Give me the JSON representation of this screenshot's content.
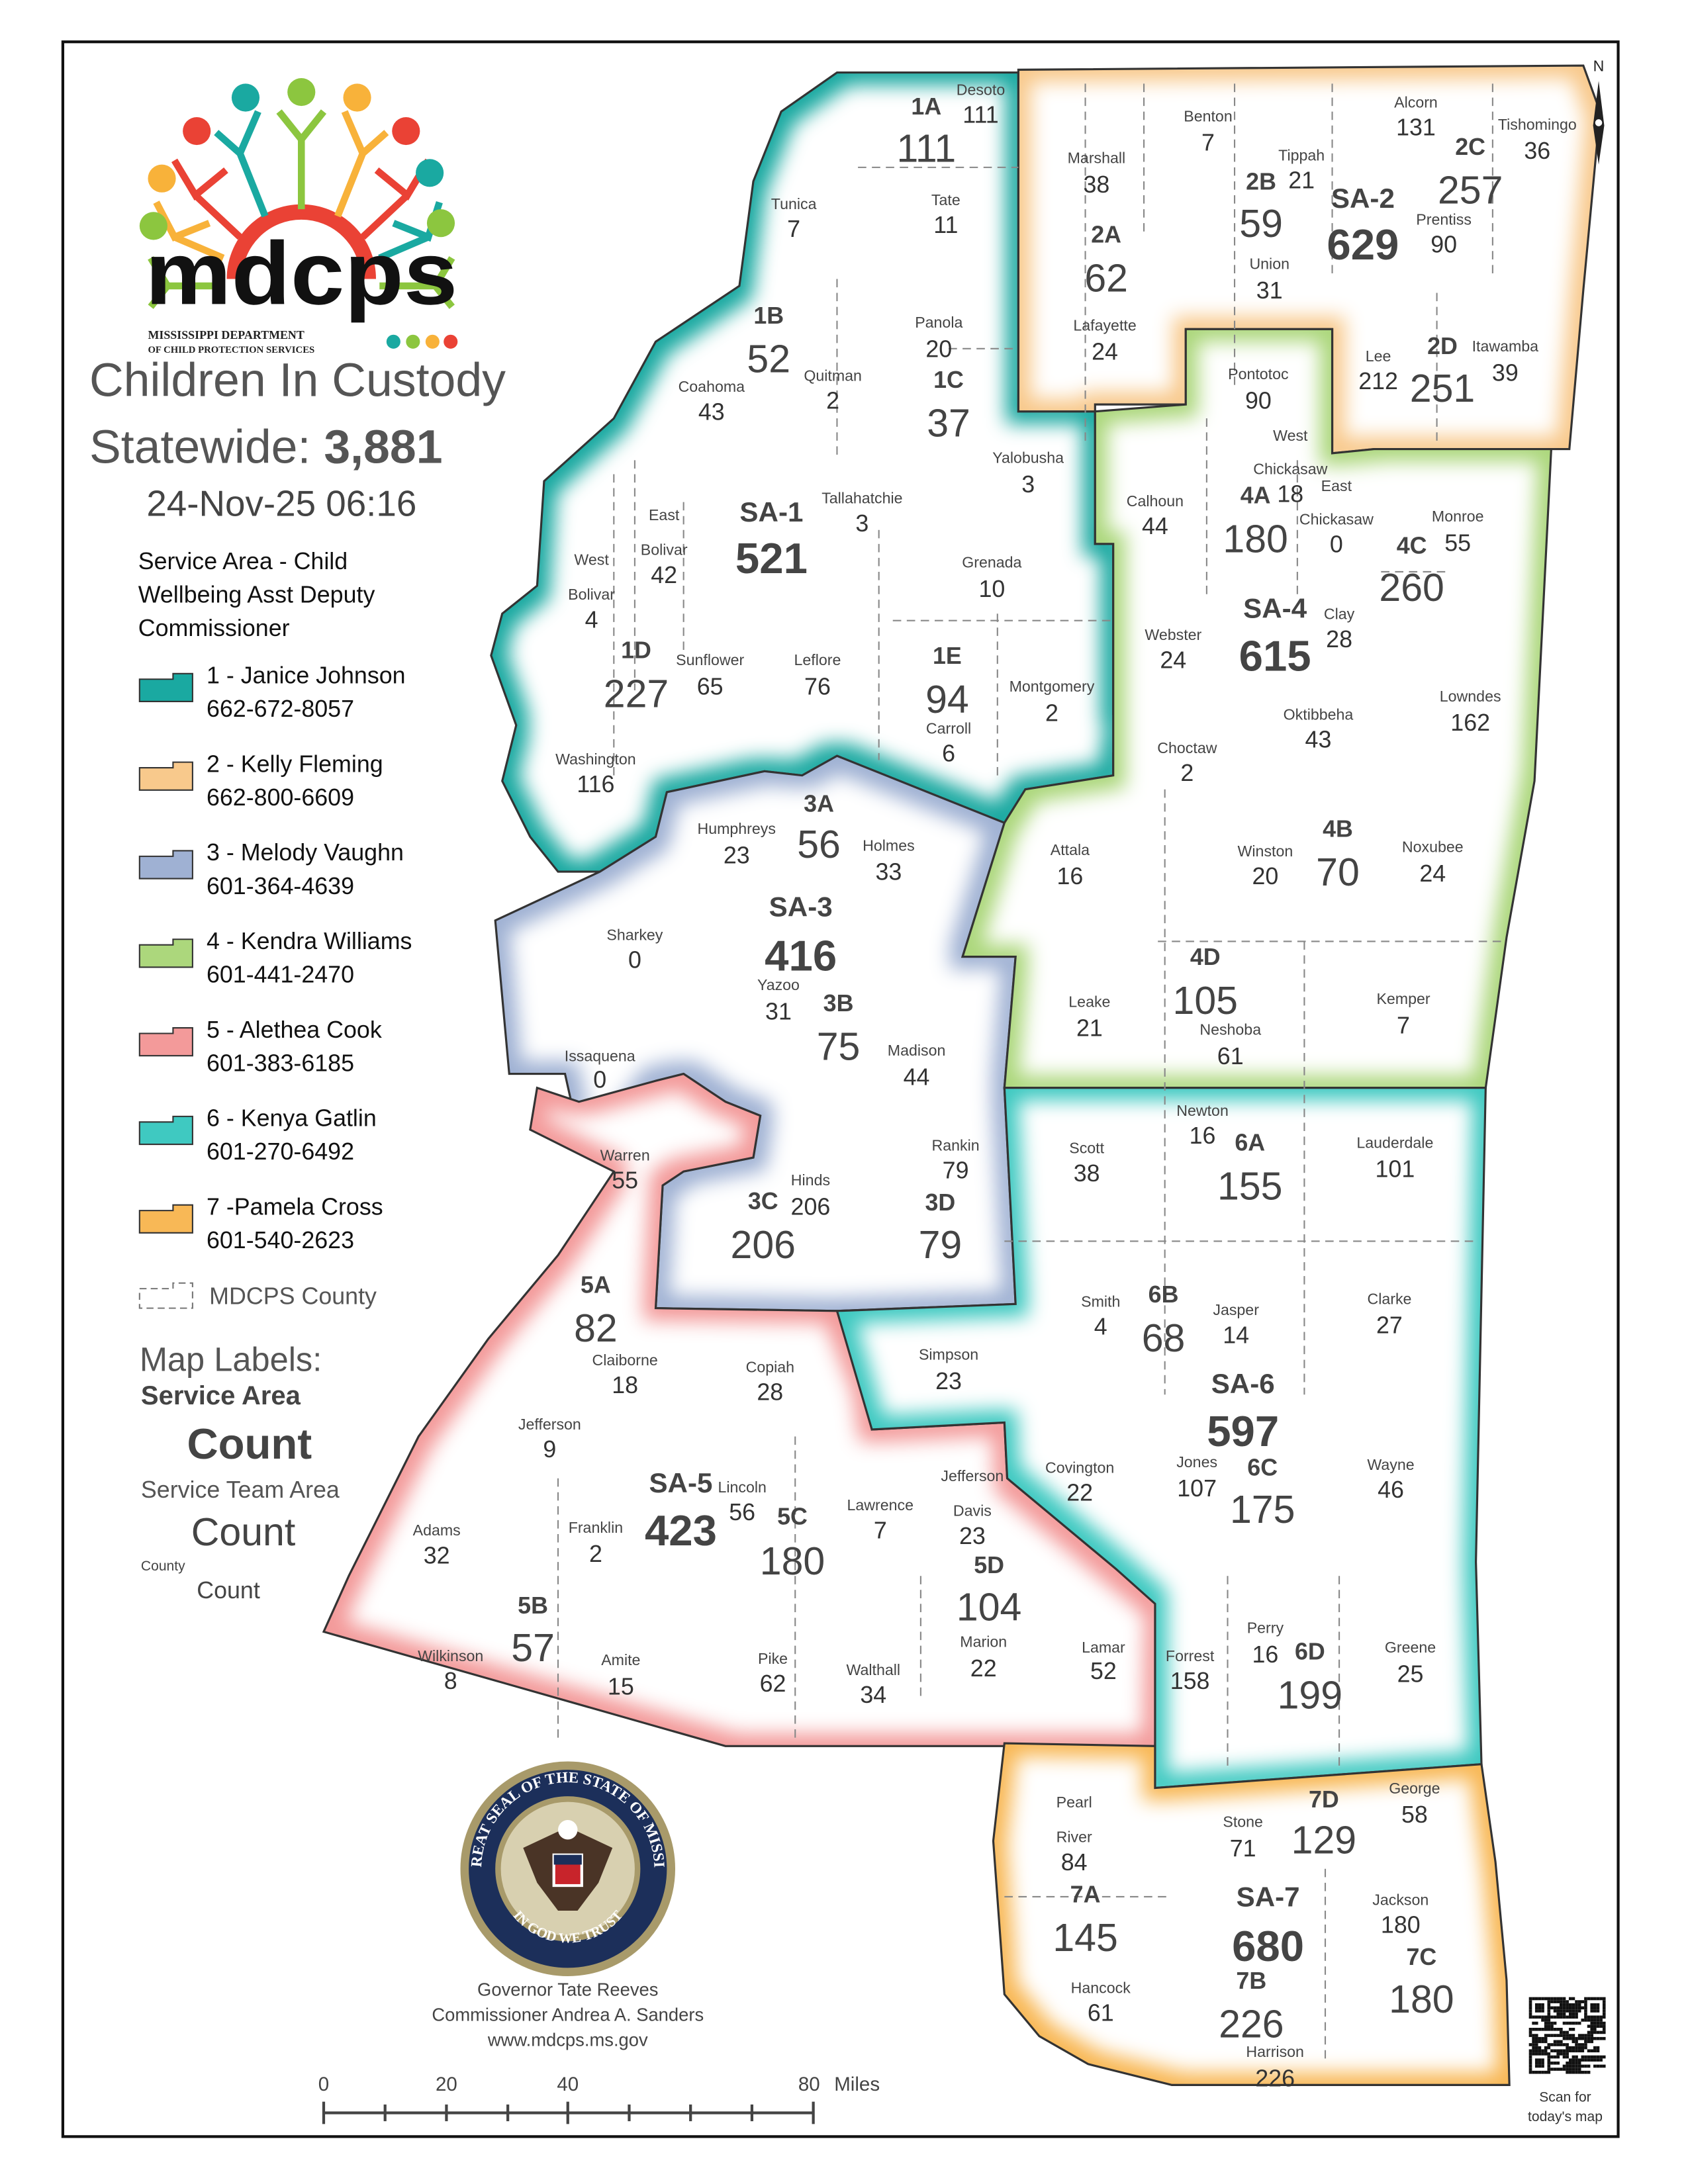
{
  "header": {
    "title": "Children In Custody",
    "statewide_label": "Statewide: ",
    "statewide_count": "3,881",
    "timestamp": "24-Nov-25 06:16"
  },
  "logo": {
    "wordmark": "mdcps",
    "line1": "MISSISSIPPI DEPARTMENT",
    "line2": "OF CHILD PROTECTION SERVICES"
  },
  "legend": {
    "heading_lines": [
      "Service Area - Child",
      "Wellbeing Asst Deputy",
      "Commissioner"
    ],
    "items": [
      {
        "label": "1 - Janice Johnson",
        "phone": "662-672-8057",
        "color": "#1aa9a1"
      },
      {
        "label": "2 - Kelly Fleming",
        "phone": "662-800-6609",
        "color": "#f8c98c"
      },
      {
        "label": "3 - Melody Vaughn",
        "phone": "601-364-4639",
        "color": "#9fb1d3"
      },
      {
        "label": "4 - Kendra Williams",
        "phone": "601-441-2470",
        "color": "#acd77c"
      },
      {
        "label": "5 - Alethea Cook",
        "phone": "601-383-6185",
        "color": "#f39a9a"
      },
      {
        "label": "6 - Kenya Gatlin",
        "phone": "601-270-6492",
        "color": "#3fc9c1"
      },
      {
        "label": "7 -Pamela Cross",
        "phone": "601-540-2623",
        "color": "#f8b856"
      }
    ],
    "county_label": "MDCPS County"
  },
  "map_labels_key": {
    "heading": "Map Labels:",
    "service_area": "Service Area",
    "service_area_count": "Count",
    "team_area": "Service Team Area",
    "team_area_count": "Count",
    "county": "County",
    "county_count": "Count"
  },
  "service_areas": [
    {
      "id": "SA-1",
      "count": "521"
    },
    {
      "id": "SA-2",
      "count": "629"
    },
    {
      "id": "SA-3",
      "count": "416"
    },
    {
      "id": "SA-4",
      "count": "615"
    },
    {
      "id": "SA-5",
      "count": "423"
    },
    {
      "id": "SA-6",
      "count": "597"
    },
    {
      "id": "SA-7",
      "count": "680"
    }
  ],
  "team_areas": [
    {
      "id": "1A",
      "count": "111"
    },
    {
      "id": "1B",
      "count": "52"
    },
    {
      "id": "1C",
      "count": "37"
    },
    {
      "id": "1D",
      "count": "227"
    },
    {
      "id": "1E",
      "count": "94"
    },
    {
      "id": "2A",
      "count": "62"
    },
    {
      "id": "2B",
      "count": "59"
    },
    {
      "id": "2C",
      "count": "257"
    },
    {
      "id": "2D",
      "count": "251"
    },
    {
      "id": "3A",
      "count": "56"
    },
    {
      "id": "3B",
      "count": "75"
    },
    {
      "id": "3C",
      "count": "206"
    },
    {
      "id": "3D",
      "count": "79"
    },
    {
      "id": "4A",
      "count": "180"
    },
    {
      "id": "4B",
      "count": "70"
    },
    {
      "id": "4C",
      "count": "260"
    },
    {
      "id": "4D",
      "count": "105"
    },
    {
      "id": "5A",
      "count": "82"
    },
    {
      "id": "5B",
      "count": "57"
    },
    {
      "id": "5C",
      "count": "180"
    },
    {
      "id": "5D",
      "count": "104"
    },
    {
      "id": "6A",
      "count": "155"
    },
    {
      "id": "6B",
      "count": "68"
    },
    {
      "id": "6C",
      "count": "175"
    },
    {
      "id": "6D",
      "count": "199"
    },
    {
      "id": "7A",
      "count": "145"
    },
    {
      "id": "7B",
      "count": "226"
    },
    {
      "id": "7C",
      "count": "180"
    },
    {
      "id": "7D",
      "count": "129"
    }
  ],
  "counties": [
    {
      "name_lines": [
        "Desoto"
      ],
      "count": "111"
    },
    {
      "name_lines": [
        "Tunica"
      ],
      "count": "7"
    },
    {
      "name_lines": [
        "Tate"
      ],
      "count": "11"
    },
    {
      "name_lines": [
        "Coahoma"
      ],
      "count": "43"
    },
    {
      "name_lines": [
        "Quitman"
      ],
      "count": "2"
    },
    {
      "name_lines": [
        "Panola"
      ],
      "count": "20"
    },
    {
      "name_lines": [
        "Yalobusha"
      ],
      "count": "3"
    },
    {
      "name_lines": [
        "Tallahatchie"
      ],
      "count": "3"
    },
    {
      "name_lines": [
        "East",
        "Bolivar"
      ],
      "count": "42"
    },
    {
      "name_lines": [
        "West",
        "Bolivar"
      ],
      "count": "4"
    },
    {
      "name_lines": [
        "Sunflower"
      ],
      "count": "65"
    },
    {
      "name_lines": [
        "Leflore"
      ],
      "count": "76"
    },
    {
      "name_lines": [
        "Grenada"
      ],
      "count": "10"
    },
    {
      "name_lines": [
        "Carroll"
      ],
      "count": "6"
    },
    {
      "name_lines": [
        "Montgomery"
      ],
      "count": "2"
    },
    {
      "name_lines": [
        "Washington"
      ],
      "count": "116"
    },
    {
      "name_lines": [
        "Marshall"
      ],
      "count": "38"
    },
    {
      "name_lines": [
        "Benton"
      ],
      "count": "7"
    },
    {
      "name_lines": [
        "Tippah"
      ],
      "count": "21"
    },
    {
      "name_lines": [
        "Alcorn"
      ],
      "count": "131"
    },
    {
      "name_lines": [
        "Tishomingo"
      ],
      "count": "36"
    },
    {
      "name_lines": [
        "Prentiss"
      ],
      "count": "90"
    },
    {
      "name_lines": [
        "Union"
      ],
      "count": "31"
    },
    {
      "name_lines": [
        "Lafayette"
      ],
      "count": "24"
    },
    {
      "name_lines": [
        "Lee"
      ],
      "count": "212"
    },
    {
      "name_lines": [
        "Itawamba"
      ],
      "count": "39"
    },
    {
      "name_lines": [
        "Pontotoc"
      ],
      "count": "90"
    },
    {
      "name_lines": [
        "West",
        "Chickasaw"
      ],
      "count": "18"
    },
    {
      "name_lines": [
        "East",
        "Chickasaw"
      ],
      "count": "0"
    },
    {
      "name_lines": [
        "Calhoun"
      ],
      "count": "44"
    },
    {
      "name_lines": [
        "Monroe"
      ],
      "count": "55"
    },
    {
      "name_lines": [
        "Webster"
      ],
      "count": "24"
    },
    {
      "name_lines": [
        "Clay"
      ],
      "count": "28"
    },
    {
      "name_lines": [
        "Oktibbeha"
      ],
      "count": "43"
    },
    {
      "name_lines": [
        "Lowndes"
      ],
      "count": "162"
    },
    {
      "name_lines": [
        "Choctaw"
      ],
      "count": "2"
    },
    {
      "name_lines": [
        "Attala"
      ],
      "count": "16"
    },
    {
      "name_lines": [
        "Winston"
      ],
      "count": "20"
    },
    {
      "name_lines": [
        "Noxubee"
      ],
      "count": "24"
    },
    {
      "name_lines": [
        "Humphreys"
      ],
      "count": "23"
    },
    {
      "name_lines": [
        "Holmes"
      ],
      "count": "33"
    },
    {
      "name_lines": [
        "Sharkey"
      ],
      "count": "0"
    },
    {
      "name_lines": [
        "Yazoo"
      ],
      "count": "31"
    },
    {
      "name_lines": [
        "Issaquena"
      ],
      "count": "0"
    },
    {
      "name_lines": [
        "Madison"
      ],
      "count": "44"
    },
    {
      "name_lines": [
        "Leake"
      ],
      "count": "21"
    },
    {
      "name_lines": [
        "Neshoba"
      ],
      "count": "61"
    },
    {
      "name_lines": [
        "Kemper"
      ],
      "count": "7"
    },
    {
      "name_lines": [
        "Warren"
      ],
      "count": "55"
    },
    {
      "name_lines": [
        "Hinds"
      ],
      "count": "206"
    },
    {
      "name_lines": [
        "Rankin"
      ],
      "count": "79"
    },
    {
      "name_lines": [
        "Scott"
      ],
      "count": "38"
    },
    {
      "name_lines": [
        "Newton"
      ],
      "count": "16"
    },
    {
      "name_lines": [
        "Lauderdale"
      ],
      "count": "101"
    },
    {
      "name_lines": [
        "Smith"
      ],
      "count": "4"
    },
    {
      "name_lines": [
        "Jasper"
      ],
      "count": "14"
    },
    {
      "name_lines": [
        "Clarke"
      ],
      "count": "27"
    },
    {
      "name_lines": [
        "Simpson"
      ],
      "count": "23"
    },
    {
      "name_lines": [
        "Claiborne"
      ],
      "count": "18"
    },
    {
      "name_lines": [
        "Copiah"
      ],
      "count": "28"
    },
    {
      "name_lines": [
        "Jefferson"
      ],
      "count": "9"
    },
    {
      "name_lines": [
        "Covington"
      ],
      "count": "22"
    },
    {
      "name_lines": [
        "Jones"
      ],
      "count": "107"
    },
    {
      "name_lines": [
        "Wayne"
      ],
      "count": "46"
    },
    {
      "name_lines": [
        "Lincoln"
      ],
      "count": "56"
    },
    {
      "name_lines": [
        "Jefferson",
        "Davis"
      ],
      "count": "23"
    },
    {
      "name_lines": [
        "Lawrence"
      ],
      "count": "7"
    },
    {
      "name_lines": [
        "Adams"
      ],
      "count": "32"
    },
    {
      "name_lines": [
        "Franklin"
      ],
      "count": "2"
    },
    {
      "name_lines": [
        "Marion"
      ],
      "count": "22"
    },
    {
      "name_lines": [
        "Lamar"
      ],
      "count": "52"
    },
    {
      "name_lines": [
        "Forrest"
      ],
      "count": "158"
    },
    {
      "name_lines": [
        "Perry"
      ],
      "count": "16"
    },
    {
      "name_lines": [
        "Greene"
      ],
      "count": "25"
    },
    {
      "name_lines": [
        "Wilkinson"
      ],
      "count": "8"
    },
    {
      "name_lines": [
        "Amite"
      ],
      "count": "15"
    },
    {
      "name_lines": [
        "Pike"
      ],
      "count": "62"
    },
    {
      "name_lines": [
        "Walthall"
      ],
      "count": "34"
    },
    {
      "name_lines": [
        "Pearl",
        "River"
      ],
      "count": "84"
    },
    {
      "name_lines": [
        "Stone"
      ],
      "count": "71"
    },
    {
      "name_lines": [
        "George"
      ],
      "count": "58"
    },
    {
      "name_lines": [
        "Jackson"
      ],
      "count": "180"
    },
    {
      "name_lines": [
        "Hancock"
      ],
      "count": "61"
    },
    {
      "name_lines": [
        "Harrison"
      ],
      "count": "226"
    }
  ],
  "seal": {
    "ring_text": "THE GREAT SEAL OF THE STATE OF MISSISSIPPI",
    "motto": "IN GOD WE TRUST"
  },
  "footer": {
    "line1": "Governor Tate Reeves",
    "line2": "Commissioner Andrea A. Sanders",
    "line3": "www.mdcps.ms.gov"
  },
  "scale_bar": {
    "ticks": [
      "0",
      "20",
      "40",
      "80"
    ],
    "unit": "Miles"
  },
  "north_label": "N",
  "qr": {
    "caption_line1": "Scan for",
    "caption_line2": "today's map"
  }
}
